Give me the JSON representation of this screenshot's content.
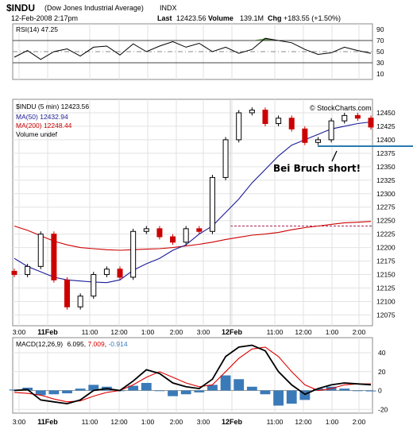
{
  "header": {
    "symbol": "$INDU",
    "name": "(Dow Jones Industrial Average)",
    "exchange": "INDX",
    "date": "12-Feb-2008 2:17pm",
    "last_label": "Last",
    "last_value": "12423.56",
    "volume_label": "Volume",
    "volume_value": "139.1M",
    "chg_label": "Chg",
    "chg_value": "+183.55 (+1.50%)",
    "watermark": "© StockCharts.com"
  },
  "colors": {
    "price_up": "#000000",
    "price_down": "#cc0000",
    "ma50": "#1a1a99",
    "ma200": "#cc0000",
    "rsi": "#000000",
    "rsi_fill": "#4a7a3a",
    "macd": "#000000",
    "macd_signal": "#dd0000",
    "histogram": "#3a7ab8",
    "support": "#2a7ab0"
  },
  "x_labels": [
    "3:00",
    "11Feb",
    "11:00",
    "12:00",
    "1:00",
    "2:00",
    "3:00",
    "12Feb",
    "11:00",
    "12:00",
    "1:00",
    "2:00"
  ],
  "chart_data": [
    {
      "type": "line",
      "panel": "rsi",
      "legend": "RSI(14) 47.25",
      "y_ticks": [
        90,
        70,
        50,
        30,
        10
      ],
      "ylim": [
        0,
        100
      ],
      "reference_lines": [
        70,
        50,
        30
      ],
      "x": [
        0,
        4,
        8,
        12,
        16,
        20,
        24,
        28,
        32,
        36,
        40,
        44,
        48,
        52,
        56,
        60,
        64,
        68,
        72,
        76,
        80,
        84,
        88,
        92,
        96,
        100,
        104,
        108
      ],
      "values": [
        40,
        52,
        36,
        50,
        55,
        42,
        58,
        60,
        44,
        64,
        50,
        60,
        68,
        58,
        65,
        50,
        58,
        47,
        54,
        74,
        70,
        66,
        54,
        45,
        48,
        58,
        52,
        47
      ]
    },
    {
      "type": "candlestick",
      "panel": "price",
      "legend": [
        {
          "label": "$INDU (5 min) 12423.56"
        },
        {
          "label": "MA(50) 12432.94"
        },
        {
          "label": "MA(200) 12248.44"
        },
        {
          "label": "Volume undef"
        }
      ],
      "y_ticks": [
        12450,
        12425,
        12400,
        12375,
        12350,
        12325,
        12300,
        12275,
        12250,
        12225,
        12200,
        12175,
        12150,
        12125,
        12100,
        12075
      ],
      "ylim": [
        12055,
        12475
      ],
      "x": [
        0,
        4,
        8,
        12,
        16,
        20,
        24,
        28,
        32,
        36,
        40,
        44,
        48,
        52,
        56,
        60,
        64,
        68,
        72,
        76,
        80,
        84,
        88,
        92,
        96,
        100,
        104,
        108
      ],
      "close": [
        12150,
        12165,
        12225,
        12140,
        12090,
        12110,
        12150,
        12160,
        12145,
        12230,
        12235,
        12220,
        12210,
        12235,
        12230,
        12330,
        12400,
        12450,
        12455,
        12430,
        12440,
        12420,
        12395,
        12400,
        12435,
        12445,
        12440,
        12423.56
      ],
      "ma50": [
        12180,
        12165,
        12155,
        12145,
        12140,
        12138,
        12136,
        12135,
        12140,
        12158,
        12170,
        12180,
        12195,
        12205,
        12225,
        12240,
        12265,
        12290,
        12320,
        12345,
        12370,
        12390,
        12400,
        12410,
        12420,
        12425,
        12430,
        12432.94
      ],
      "ma200": [
        12240,
        12232,
        12222,
        12212,
        12205,
        12200,
        12198,
        12196,
        12195,
        12196,
        12197,
        12198,
        12200,
        12203,
        12206,
        12210,
        12215,
        12219,
        12223,
        12225,
        12228,
        12233,
        12237,
        12240,
        12243,
        12246,
        12247,
        12248.44
      ],
      "support_level": 12388,
      "reference_level": 12240,
      "annotation": "Bei Bruch short!"
    },
    {
      "type": "line",
      "panel": "macd",
      "legend": {
        "prefix": "MACD(12,26,9)",
        "macd": "6.095",
        "signal": "7.009",
        "histogram": "-0.914"
      },
      "y_ticks": [
        40,
        20,
        0,
        -20
      ],
      "ylim": [
        -24,
        56
      ],
      "x": [
        0,
        4,
        8,
        12,
        16,
        20,
        24,
        28,
        32,
        36,
        40,
        44,
        48,
        52,
        56,
        60,
        64,
        68,
        72,
        76,
        80,
        84,
        88,
        92,
        96,
        100,
        104,
        108
      ],
      "macd": [
        0,
        1,
        -10,
        -12,
        -14,
        -10,
        0,
        2,
        0,
        10,
        22,
        18,
        8,
        4,
        2,
        12,
        36,
        46,
        48,
        42,
        20,
        6,
        -4,
        2,
        6,
        8,
        7,
        6.095
      ],
      "signal": [
        -2,
        -3,
        -5,
        -9,
        -12,
        -11,
        -6,
        -2,
        0,
        6,
        14,
        20,
        14,
        8,
        4,
        6,
        20,
        34,
        44,
        46,
        36,
        20,
        6,
        0,
        2,
        6,
        7,
        7.009
      ],
      "histogram": [
        1,
        3,
        -5,
        -4,
        -3,
        2,
        6,
        4,
        0,
        5,
        8,
        0,
        -6,
        -4,
        -2,
        6,
        16,
        12,
        4,
        -4,
        -16,
        -14,
        -10,
        2,
        4,
        2,
        0,
        -0.914
      ]
    }
  ]
}
